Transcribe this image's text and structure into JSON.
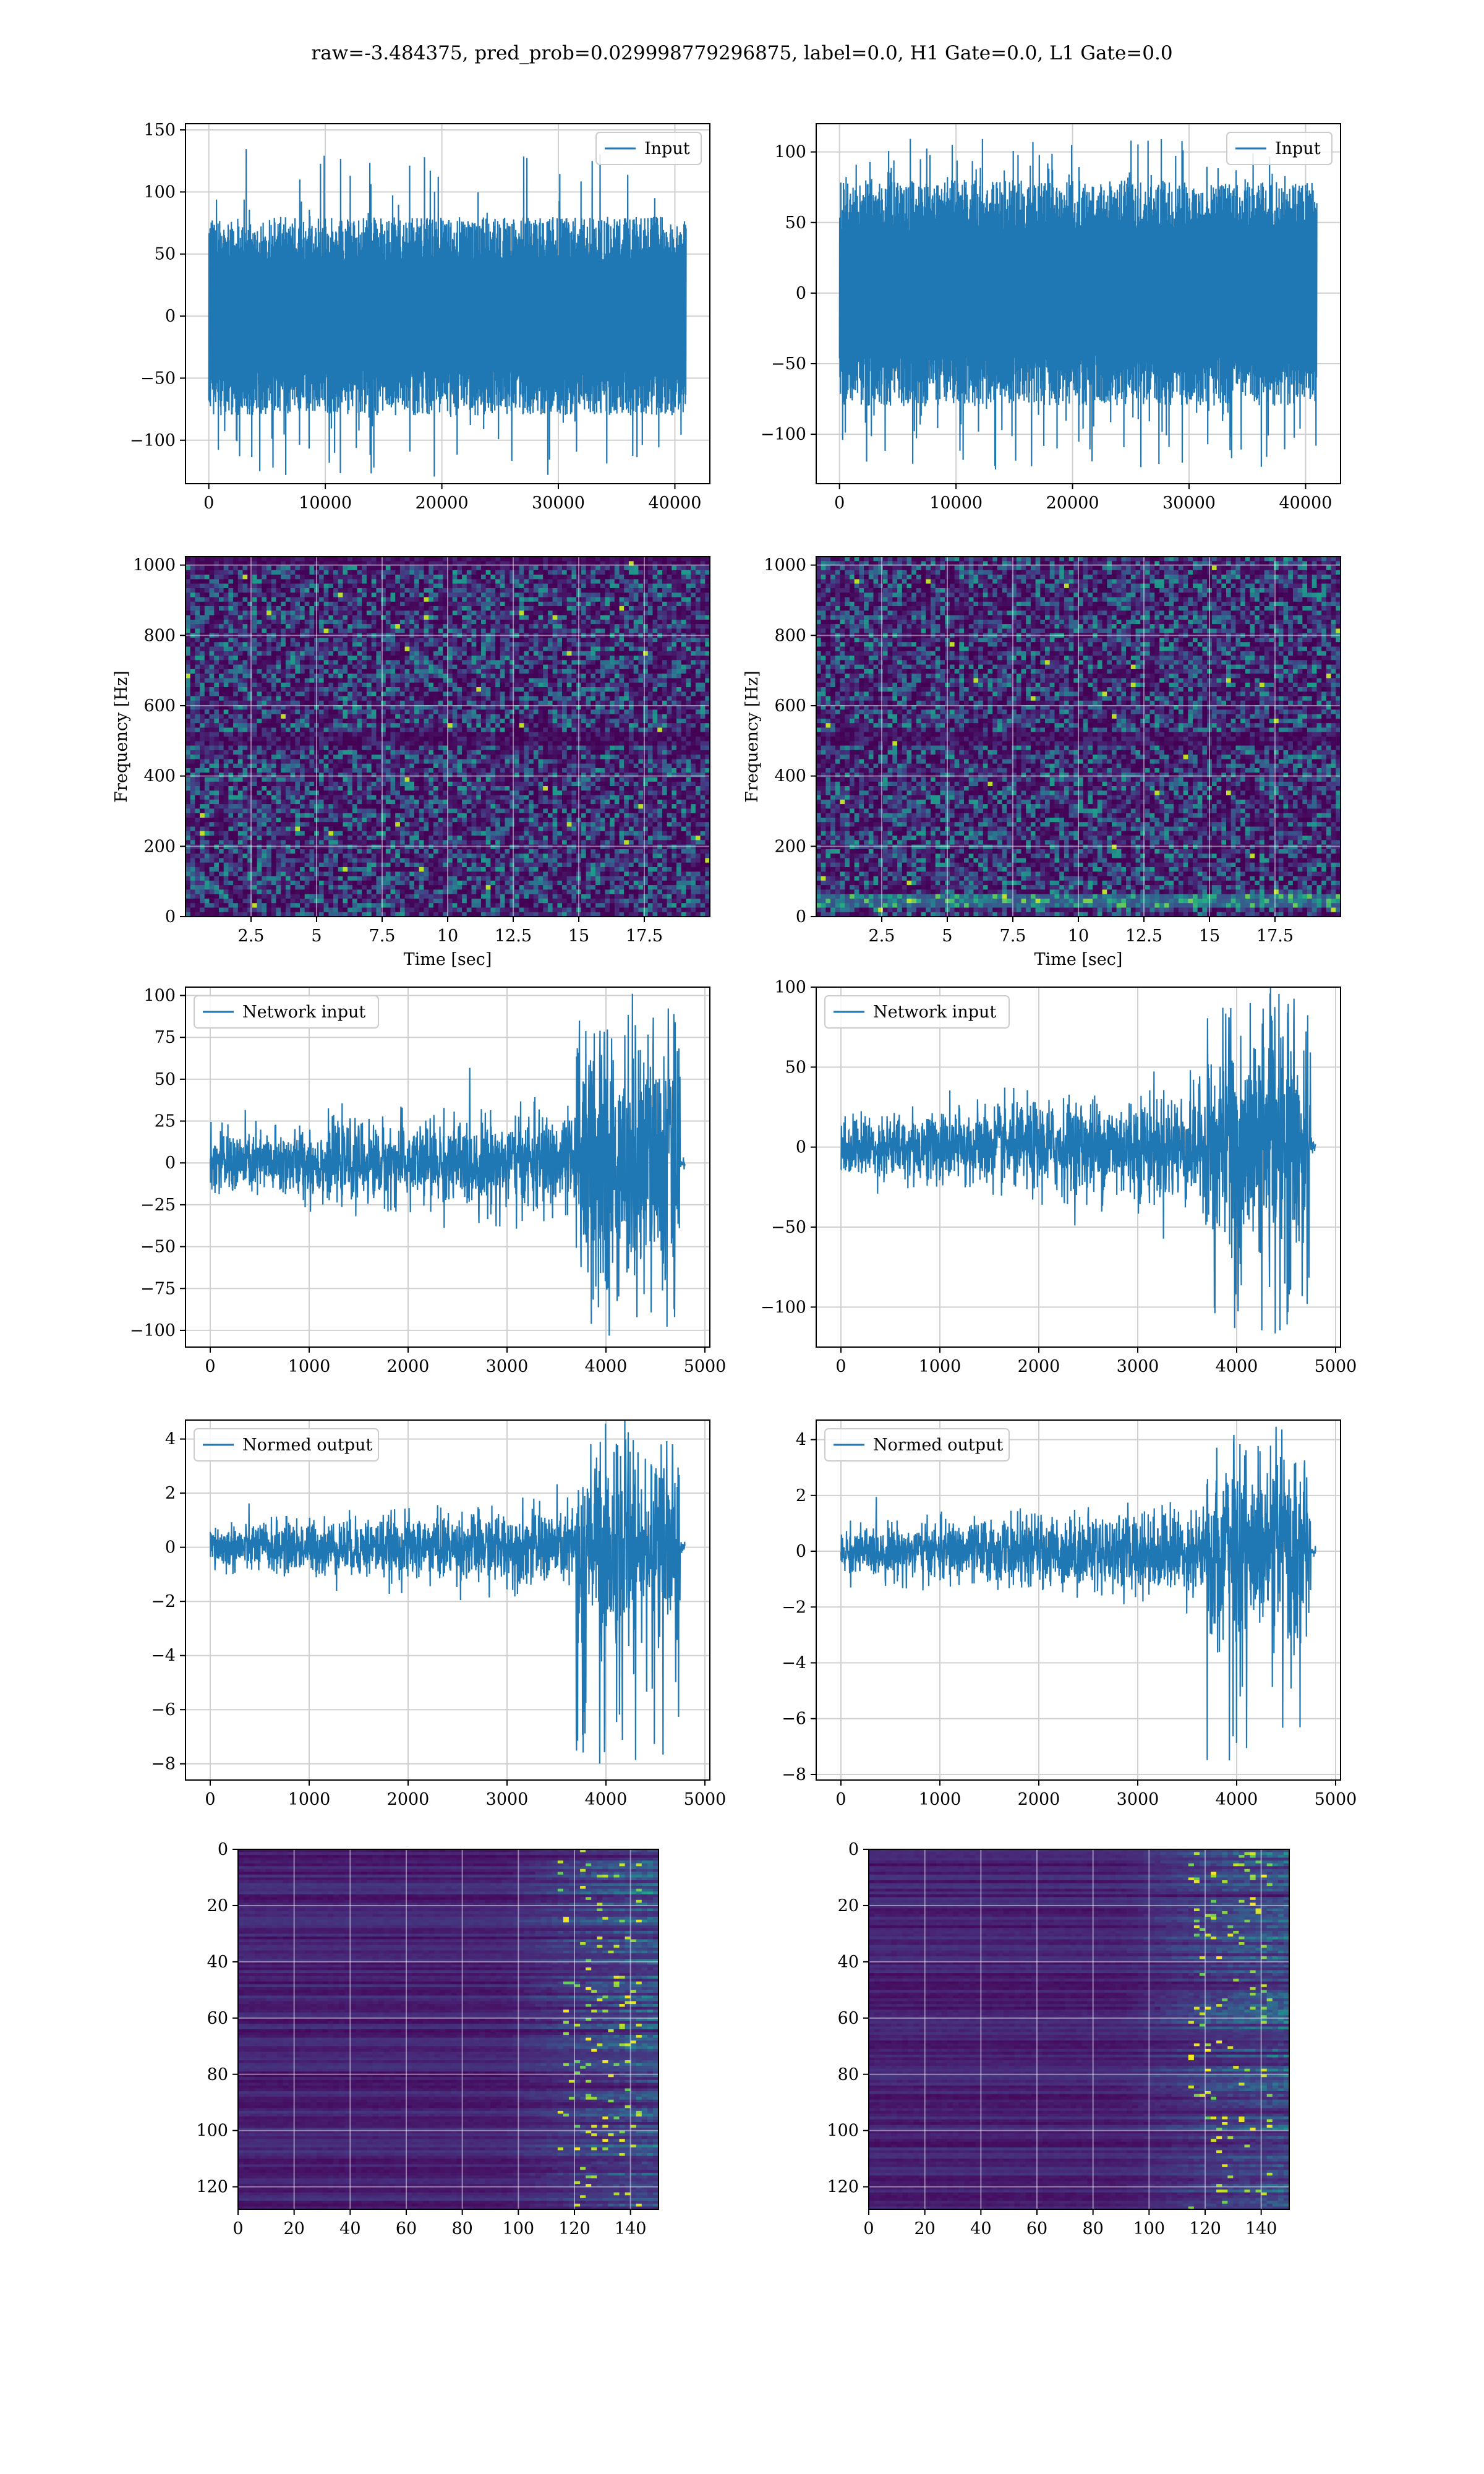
{
  "figure": {
    "title": "raw=-3.484375, pred_prob=0.029998779296875, label=0.0, H1 Gate=0.0, L1 Gate=0.0"
  },
  "colors": {
    "line": "#1f77b4",
    "grid": "#d0d0d0",
    "axis": "#000000",
    "viridis_dark": "#440154"
  },
  "chart_data": [
    {
      "id": "h1-input",
      "type": "line",
      "title": "",
      "xlabel": "",
      "ylabel": "",
      "xlim": [
        -2000,
        43000
      ],
      "ylim": [
        -135,
        155
      ],
      "xticks": [
        0,
        10000,
        20000,
        30000,
        40000
      ],
      "yticks": [
        -100,
        -50,
        0,
        50,
        100,
        150
      ],
      "legend": "top-right",
      "grid": true,
      "series": [
        {
          "name": "Input",
          "n_samples": 40960,
          "x_range": [
            0,
            40960
          ],
          "envelope": [
            -80,
            80
          ],
          "peaks": [
            -130,
            135
          ]
        }
      ]
    },
    {
      "id": "l1-input",
      "type": "line",
      "title": "",
      "xlabel": "",
      "ylabel": "",
      "xlim": [
        -2000,
        43000
      ],
      "ylim": [
        -135,
        120
      ],
      "xticks": [
        0,
        10000,
        20000,
        30000,
        40000
      ],
      "yticks": [
        -100,
        -50,
        0,
        50,
        100
      ],
      "legend": "top-right",
      "grid": true,
      "series": [
        {
          "name": "Input",
          "n_samples": 40960,
          "x_range": [
            0,
            40960
          ],
          "envelope": [
            -80,
            80
          ],
          "peaks": [
            -125,
            110
          ]
        }
      ]
    },
    {
      "id": "h1-spectrogram",
      "type": "heatmap",
      "title": "",
      "xlabel": "Time [sec]",
      "ylabel": "Frequency [Hz]",
      "xlim": [
        0,
        20
      ],
      "ylim": [
        0,
        1024
      ],
      "xticks": [
        2.5,
        5.0,
        7.5,
        10.0,
        12.5,
        15.0,
        17.5
      ],
      "yticks": [
        0,
        200,
        400,
        600,
        800,
        1000
      ],
      "colormap": "viridis",
      "grid": true,
      "features": {
        "dark_band_hz": [
          480,
          520
        ],
        "dark_top_hz": [
          1000,
          1024
        ]
      }
    },
    {
      "id": "l1-spectrogram",
      "type": "heatmap",
      "title": "",
      "xlabel": "Time [sec]",
      "ylabel": "Frequency [Hz]",
      "xlim": [
        0,
        20
      ],
      "ylim": [
        0,
        1024
      ],
      "xticks": [
        2.5,
        5.0,
        7.5,
        10.0,
        12.5,
        15.0,
        17.5
      ],
      "yticks": [
        0,
        200,
        400,
        600,
        800,
        1000
      ],
      "colormap": "viridis",
      "grid": true,
      "features": {
        "dark_band_hz": [
          480,
          520
        ],
        "bright_low_hz": [
          20,
          60
        ]
      }
    },
    {
      "id": "h1-network-input",
      "type": "line",
      "title": "",
      "xlabel": "",
      "ylabel": "",
      "xlim": [
        -250,
        5050
      ],
      "ylim": [
        -110,
        105
      ],
      "xticks": [
        0,
        1000,
        2000,
        3000,
        4000,
        5000
      ],
      "yticks": [
        -100,
        -75,
        -50,
        -25,
        0,
        25,
        50,
        75,
        100
      ],
      "legend": "top-left",
      "grid": true,
      "series": [
        {
          "name": "Network input",
          "n_samples": 4800,
          "segments": [
            {
              "x": [
                0,
                3700
              ],
              "amp_start": 15,
              "amp_end": 25
            },
            {
              "x": [
                3700,
                4750
              ],
              "amp": 60
            },
            {
              "x": [
                4750,
                4800
              ],
              "amp": 3
            }
          ],
          "peaks": [
            -104,
            97
          ]
        }
      ]
    },
    {
      "id": "l1-network-input",
      "type": "line",
      "title": "",
      "xlabel": "",
      "ylabel": "",
      "xlim": [
        -250,
        5050
      ],
      "ylim": [
        -125,
        100
      ],
      "xticks": [
        0,
        1000,
        2000,
        3000,
        4000,
        5000
      ],
      "yticks": [
        -100,
        -50,
        0,
        50,
        100
      ],
      "legend": "top-left",
      "grid": true,
      "series": [
        {
          "name": "Network input",
          "n_samples": 4800,
          "segments": [
            {
              "x": [
                0,
                3700
              ],
              "amp_start": 15,
              "amp_end": 30
            },
            {
              "x": [
                3700,
                4750
              ],
              "amp": 55
            },
            {
              "x": [
                4750,
                4800
              ],
              "amp": 3
            }
          ],
          "peaks": [
            -120,
            90
          ]
        }
      ]
    },
    {
      "id": "h1-normed-output",
      "type": "line",
      "title": "",
      "xlabel": "",
      "ylabel": "",
      "xlim": [
        -250,
        5050
      ],
      "ylim": [
        -8.6,
        4.7
      ],
      "xticks": [
        0,
        1000,
        2000,
        3000,
        4000,
        5000
      ],
      "yticks": [
        -8,
        -6,
        -4,
        -2,
        0,
        2,
        4
      ],
      "legend": "top-left",
      "grid": true,
      "series": [
        {
          "name": "Normed output",
          "n_samples": 4800,
          "segments": [
            {
              "x": [
                0,
                3700
              ],
              "amp_start": 0.7,
              "amp_end": 1.2
            },
            {
              "x": [
                3700,
                4750
              ],
              "amp": 2.8
            },
            {
              "x": [
                4750,
                4800
              ],
              "amp": 0.15
            }
          ],
          "peaks": [
            -8,
            4.1
          ]
        }
      ]
    },
    {
      "id": "l1-normed-output",
      "type": "line",
      "title": "",
      "xlabel": "",
      "ylabel": "",
      "xlim": [
        -250,
        5050
      ],
      "ylim": [
        -8.2,
        4.7
      ],
      "xticks": [
        0,
        1000,
        2000,
        3000,
        4000,
        5000
      ],
      "yticks": [
        -8,
        -6,
        -4,
        -2,
        0,
        2,
        4
      ],
      "legend": "top-left",
      "grid": true,
      "series": [
        {
          "name": "Normed output",
          "n_samples": 4800,
          "segments": [
            {
              "x": [
                0,
                3700
              ],
              "amp_start": 0.7,
              "amp_end": 1.3
            },
            {
              "x": [
                3700,
                4750
              ],
              "amp": 2.6
            },
            {
              "x": [
                4750,
                4800
              ],
              "amp": 0.15
            }
          ],
          "peaks": [
            -7.6,
            4.2
          ]
        }
      ]
    },
    {
      "id": "h1-feature-map",
      "type": "heatmap",
      "title": "",
      "xlabel": "",
      "ylabel": "",
      "xlim": [
        0,
        150
      ],
      "ylim": [
        128,
        0
      ],
      "xticks": [
        0,
        20,
        40,
        60,
        80,
        100,
        120,
        140
      ],
      "yticks": [
        0,
        20,
        40,
        60,
        80,
        100,
        120
      ],
      "colormap": "viridis",
      "grid": true,
      "rows": 128,
      "cols": 150,
      "features": {
        "active_cols": [
          95,
          150
        ],
        "bright_cols": [
          115,
          145
        ]
      }
    },
    {
      "id": "l1-feature-map",
      "type": "heatmap",
      "title": "",
      "xlabel": "",
      "ylabel": "",
      "xlim": [
        0,
        150
      ],
      "ylim": [
        128,
        0
      ],
      "xticks": [
        0,
        20,
        40,
        60,
        80,
        100,
        120,
        140
      ],
      "yticks": [
        0,
        20,
        40,
        60,
        80,
        100,
        120
      ],
      "colormap": "viridis",
      "grid": true,
      "rows": 128,
      "cols": 150,
      "features": {
        "active_cols": [
          90,
          150
        ],
        "bright_cols": [
          115,
          145
        ]
      }
    }
  ]
}
